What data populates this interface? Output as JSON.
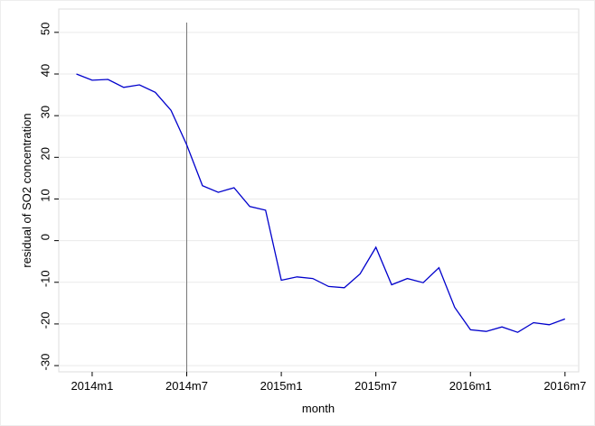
{
  "chart_data": {
    "type": "line",
    "ylabel": "residual of SO2 concentration",
    "xlabel": "month",
    "categories": [
      null,
      "2014m1",
      null,
      null,
      null,
      null,
      null,
      "2014m7",
      null,
      null,
      null,
      null,
      null,
      "2015m1",
      null,
      null,
      null,
      null,
      null,
      "2015m7",
      null,
      null,
      null,
      null,
      null,
      "2016m1",
      null,
      null,
      null,
      null,
      null,
      "2016m7"
    ],
    "series": [
      {
        "color": "#0000cc",
        "values": [
          40,
          38.5,
          38.7,
          36.8,
          37.4,
          35.6,
          31.3,
          23,
          13.2,
          11.6,
          12.7,
          8.2,
          7.3,
          -9.5,
          -8.7,
          -9.1,
          -11,
          -11.3,
          -8,
          -1.6,
          -10.6,
          -9.1,
          -10.1,
          -6.5,
          -16,
          -21.4,
          -21.8,
          -20.7,
          -22,
          -19.7,
          -20.2,
          -18.8
        ]
      }
    ],
    "ylim": [
      -31.5,
      55.6
    ],
    "yticks": [
      -30,
      -20,
      -10,
      0,
      10,
      20,
      30,
      40,
      50
    ],
    "grid": true,
    "xline": 7
  }
}
